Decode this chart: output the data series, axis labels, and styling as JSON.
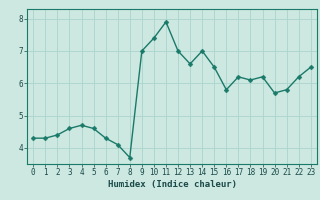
{
  "xlabel": "Humidex (Indice chaleur)",
  "x_values": [
    0,
    1,
    2,
    3,
    4,
    5,
    6,
    7,
    8,
    9,
    10,
    11,
    12,
    13,
    14,
    15,
    16,
    17,
    18,
    19,
    20,
    21,
    22,
    23
  ],
  "y_values": [
    4.3,
    4.3,
    4.4,
    4.6,
    4.7,
    4.6,
    4.3,
    4.1,
    3.7,
    7.0,
    7.4,
    7.9,
    7.0,
    6.6,
    7.0,
    6.5,
    5.8,
    6.2,
    6.1,
    6.2,
    5.7,
    5.8,
    6.2,
    6.5
  ],
  "line_color": "#1a7a6a",
  "marker_color": "#1a7a6a",
  "bg_color": "#cce8e0",
  "grid_color": "#aad4cc",
  "axis_color": "#1a7a6a",
  "text_color": "#1a4a4a",
  "ylim": [
    3.5,
    8.3
  ],
  "yticks": [
    4,
    5,
    6,
    7,
    8
  ],
  "xlim": [
    -0.5,
    23.5
  ],
  "xticks": [
    0,
    1,
    2,
    3,
    4,
    5,
    6,
    7,
    8,
    9,
    10,
    11,
    12,
    13,
    14,
    15,
    16,
    17,
    18,
    19,
    20,
    21,
    22,
    23
  ],
  "xlabel_fontsize": 6.5,
  "tick_fontsize": 5.5,
  "marker_size": 2.5,
  "line_width": 1.0
}
